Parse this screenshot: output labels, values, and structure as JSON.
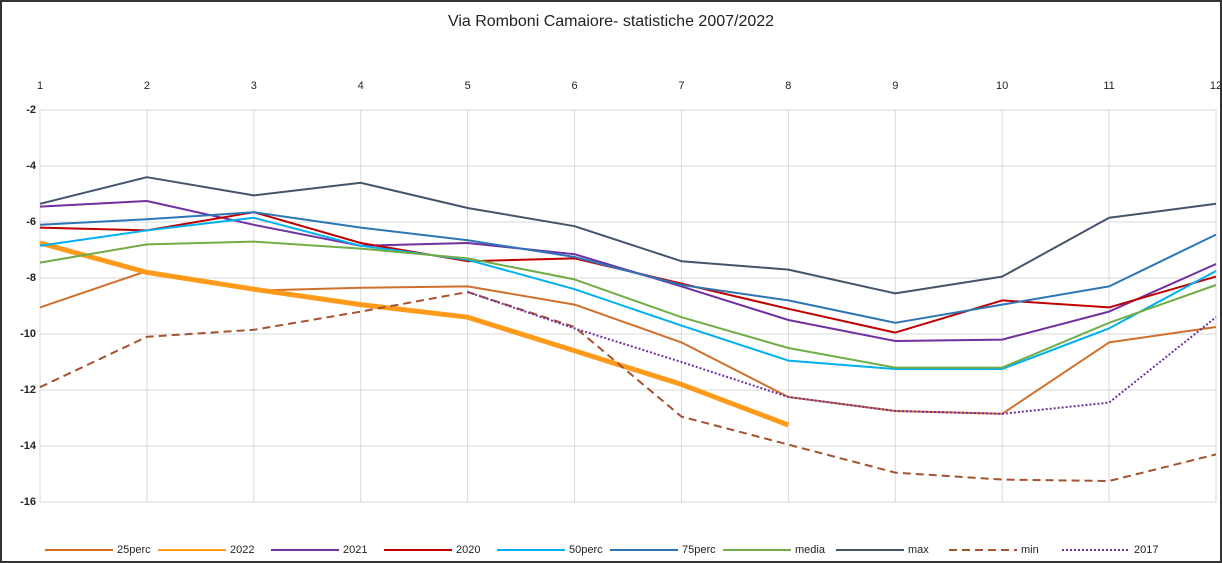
{
  "chart_data": {
    "type": "line",
    "title": "Via Romboni Camaiore- statistiche 2007/2022",
    "x": [
      1,
      2,
      3,
      4,
      5,
      6,
      7,
      8,
      9,
      10,
      11,
      12
    ],
    "xlim": [
      1,
      12
    ],
    "xticks": [
      1,
      2,
      3,
      4,
      5,
      6,
      7,
      8,
      9,
      10,
      11,
      12
    ],
    "ylim": [
      -16,
      -2
    ],
    "yticks": [
      -2,
      -4,
      -6,
      -8,
      -10,
      -12,
      -14,
      -16
    ],
    "grid": true,
    "legend": "bottom",
    "series": [
      {
        "name": "25perc",
        "color": "#d0702c",
        "style": "solid",
        "width": 2,
        "values": [
          -9.05,
          -7.75,
          -8.45,
          -8.35,
          -8.3,
          -8.95,
          -10.3,
          -12.25,
          -12.75,
          -12.85,
          -10.3,
          -9.75
        ]
      },
      {
        "name": "2022",
        "color": "#ff9a1a",
        "style": "solid",
        "width": 5,
        "values": [
          -6.75,
          -7.8,
          -8.4,
          -8.95,
          -9.4,
          -10.6,
          -11.8,
          -13.25,
          null,
          null,
          null,
          null
        ]
      },
      {
        "name": "2021",
        "color": "#7030a0",
        "style": "solid",
        "width": 2,
        "values": [
          -5.45,
          -5.25,
          -6.1,
          -6.85,
          -6.75,
          -7.15,
          -8.3,
          -9.5,
          -10.25,
          -10.2,
          -9.2,
          -7.5
        ]
      },
      {
        "name": "2020",
        "color": "#c00000",
        "style": "solid",
        "width": 2,
        "values": [
          -6.2,
          -6.3,
          -5.65,
          -6.75,
          -7.4,
          -7.3,
          -8.2,
          -9.1,
          -9.95,
          -8.8,
          -9.05,
          -7.95
        ]
      },
      {
        "name": "50perc",
        "color": "#00b0f0",
        "style": "solid",
        "width": 2,
        "values": [
          -6.85,
          -6.3,
          -5.85,
          -6.85,
          -7.35,
          -8.4,
          -9.7,
          -10.95,
          -11.25,
          -11.25,
          -9.8,
          -7.75
        ]
      },
      {
        "name": "75perc",
        "color": "#2e75b6",
        "style": "solid",
        "width": 2,
        "values": [
          -6.1,
          -5.9,
          -5.65,
          -6.2,
          -6.65,
          -7.25,
          -8.25,
          -8.8,
          -9.6,
          -8.95,
          -8.3,
          -6.45
        ]
      },
      {
        "name": "media",
        "color": "#70ad47",
        "style": "solid",
        "width": 2,
        "values": [
          -7.45,
          -6.8,
          -6.7,
          -6.95,
          -7.3,
          -8.05,
          -9.4,
          -10.5,
          -11.2,
          -11.2,
          -9.6,
          -8.25
        ]
      },
      {
        "name": "max",
        "color": "#44546a",
        "style": "solid",
        "width": 2,
        "values": [
          -5.35,
          -4.4,
          -5.05,
          -4.6,
          -5.5,
          -6.15,
          -7.4,
          -7.7,
          -8.55,
          -7.95,
          -5.85,
          -5.35
        ]
      },
      {
        "name": "min",
        "color": "#a5522e",
        "style": "dashed",
        "width": 2,
        "values": [
          -11.9,
          -10.1,
          -9.85,
          -9.2,
          -8.5,
          -9.75,
          -12.95,
          -13.95,
          -14.95,
          -15.2,
          -15.25,
          -14.3
        ]
      },
      {
        "name": "2017",
        "color": "#7030a0",
        "style": "dotted",
        "width": 2,
        "values": [
          null,
          null,
          null,
          null,
          -8.5,
          -9.8,
          -11.0,
          -12.25,
          -12.75,
          -12.85,
          -12.45,
          -9.4
        ]
      }
    ]
  }
}
